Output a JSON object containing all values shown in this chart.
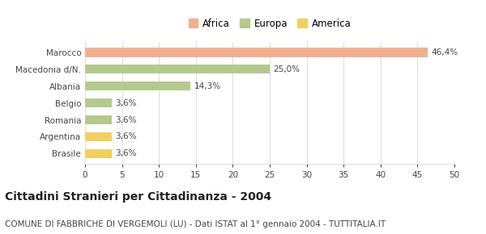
{
  "categories": [
    "Brasile",
    "Argentina",
    "Romania",
    "Belgio",
    "Albania",
    "Macedonia d/N.",
    "Marocco"
  ],
  "values": [
    3.6,
    3.6,
    3.6,
    3.6,
    14.3,
    25.0,
    46.4
  ],
  "colors": [
    "#f0d060",
    "#f0d060",
    "#b5c98e",
    "#b5c98e",
    "#b5c98e",
    "#b5c98e",
    "#f0b090"
  ],
  "labels": [
    "3,6%",
    "3,6%",
    "3,6%",
    "3,6%",
    "14,3%",
    "25,0%",
    "46,4%"
  ],
  "legend_items": [
    {
      "label": "Africa",
      "color": "#f0b090"
    },
    {
      "label": "Europa",
      "color": "#b5c98e"
    },
    {
      "label": "America",
      "color": "#f0d060"
    }
  ],
  "xlim": [
    0,
    50
  ],
  "xticks": [
    0,
    5,
    10,
    15,
    20,
    25,
    30,
    35,
    40,
    45,
    50
  ],
  "title": "Cittadini Stranieri per Cittadinanza - 2004",
  "subtitle": "COMUNE DI FABBRICHE DI VERGEMOLI (LU) - Dati ISTAT al 1° gennaio 2004 - TUTTITALIA.IT",
  "title_fontsize": 10,
  "subtitle_fontsize": 7.5,
  "label_fontsize": 7.5,
  "tick_fontsize": 7.5,
  "bar_height": 0.55,
  "bg_color": "#ffffff",
  "grid_color": "#dddddd",
  "text_color": "#444444"
}
